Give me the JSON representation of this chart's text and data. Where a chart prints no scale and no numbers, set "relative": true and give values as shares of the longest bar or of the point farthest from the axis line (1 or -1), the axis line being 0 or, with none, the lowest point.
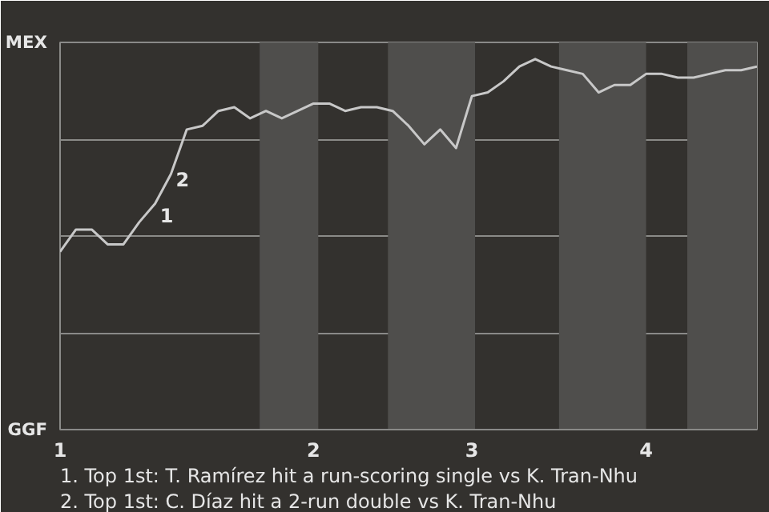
{
  "chart_data": {
    "type": "line",
    "relative": true,
    "categories": [
      "1",
      null,
      null,
      null,
      null,
      null,
      null,
      null,
      null,
      null,
      null,
      null,
      null,
      null,
      null,
      null,
      "2",
      null,
      null,
      null,
      null,
      null,
      null,
      null,
      null,
      null,
      "3",
      null,
      null,
      null,
      null,
      null,
      null,
      null,
      null,
      null,
      null,
      "4",
      null,
      null,
      null,
      null,
      null,
      null,
      null
    ],
    "series": [
      {
        "color": "#c8c8c8",
        "values": [
          0.48,
          0.54,
          0.54,
          0.5,
          0.5,
          0.56,
          0.61,
          0.69,
          0.81,
          0.82,
          0.86,
          0.87,
          0.84,
          0.86,
          0.84,
          0.86,
          0.88,
          0.88,
          0.86,
          0.87,
          0.87,
          0.86,
          0.82,
          0.77,
          0.81,
          0.76,
          0.9,
          0.91,
          0.94,
          0.98,
          1,
          0.98,
          0.97,
          0.96,
          0.91,
          0.93,
          0.93,
          0.96,
          0.96,
          0.95,
          0.95,
          0.96,
          0.97,
          0.97,
          0.98
        ]
      }
    ],
    "grid": "y",
    "line_style": "solid",
    "annotations": [
      "MEX",
      "GGF",
      "1",
      "2",
      "1. Top 1st: T. Ramírez hit a run-scoring single vs K. Tran-Nhu",
      "2. Top 1st: C. Díaz hit a 2-run double vs K. Tran-Nhu"
    ]
  }
}
